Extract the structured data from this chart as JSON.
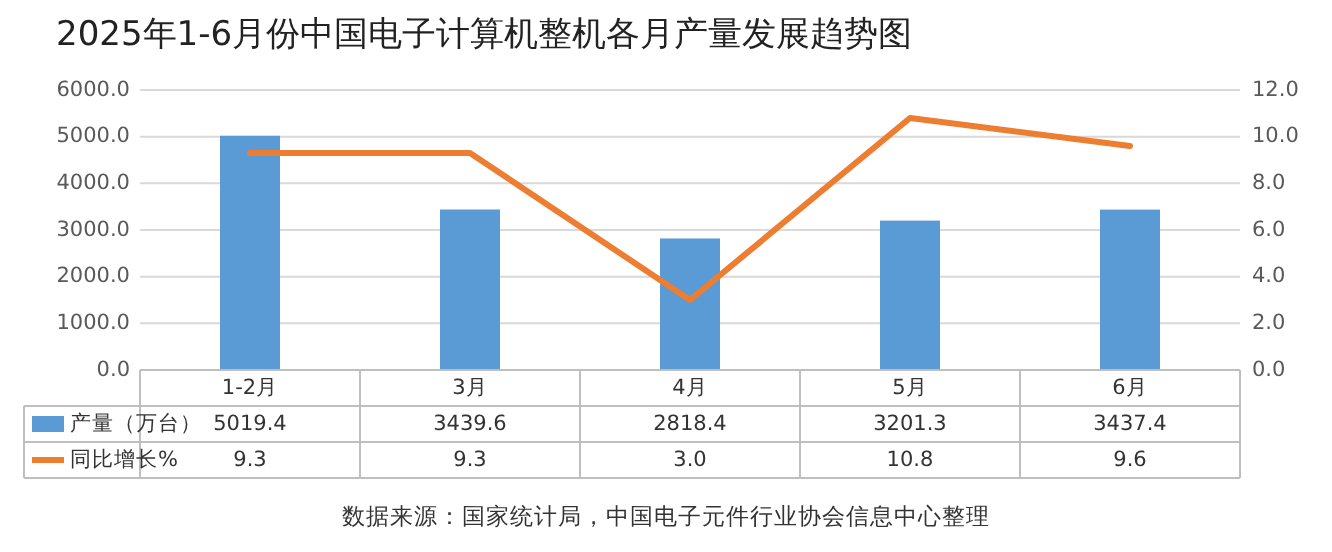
{
  "chart_data": {
    "type": "bar",
    "title": "2025年1-6月份中国电子计算机整机各月产量发展趋势图",
    "categories": [
      "1-2月",
      "3月",
      "4月",
      "5月",
      "6月"
    ],
    "series": [
      {
        "name": "产量（万台）",
        "color": "#5b9bd5",
        "values": [
          5019.4,
          3439.6,
          2818.4,
          3201.3,
          3437.4
        ],
        "value_labels": [
          "5019.4",
          "3439.6",
          "2818.4",
          "3201.3",
          "3437.4"
        ]
      },
      {
        "name": "同比增长%",
        "type": "line",
        "axis": "y2",
        "color": "#ed7d31",
        "values": [
          9.3,
          9.3,
          3.0,
          10.8,
          9.6
        ],
        "value_labels": [
          "9.3",
          "9.3",
          "3.0",
          "10.8",
          "9.6"
        ]
      }
    ],
    "ylim": [
      0,
      6000
    ],
    "yticks": [
      {
        "value": 0,
        "label": "0.0"
      },
      {
        "value": 1000,
        "label": "1000.0"
      },
      {
        "value": 2000,
        "label": "2000.0"
      },
      {
        "value": 3000,
        "label": "3000.0"
      },
      {
        "value": 4000,
        "label": "4000.0"
      },
      {
        "value": 5000,
        "label": "5000.0"
      },
      {
        "value": 6000,
        "label": "6000.0"
      }
    ],
    "y2lim": [
      0,
      12
    ],
    "y2ticks": [
      {
        "value": 0,
        "label": "0.0"
      },
      {
        "value": 2,
        "label": "2.0"
      },
      {
        "value": 4,
        "label": "4.0"
      },
      {
        "value": 6,
        "label": "6.0"
      },
      {
        "value": 8,
        "label": "8.0"
      },
      {
        "value": 10,
        "label": "10.0"
      },
      {
        "value": 12,
        "label": "12.0"
      }
    ],
    "grid": "y",
    "legend": "bottom",
    "annotations": [
      "数据来源：国家统计局，中国电子元件行业协会信息中心整理"
    ]
  }
}
